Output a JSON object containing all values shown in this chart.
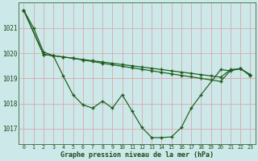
{
  "title": "Graphe pression niveau de la mer (hPa)",
  "background_color": "#cce8e8",
  "grid_color": "#d8a8b0",
  "line_color": "#1a5c1a",
  "xlim_min": -0.5,
  "xlim_max": 23.5,
  "ylim_min": 1016.4,
  "ylim_max": 1022.0,
  "yticks": [
    1017,
    1018,
    1019,
    1020,
    1021
  ],
  "xtick_labels": [
    "0",
    "1",
    "2",
    "3",
    "4",
    "5",
    "6",
    "7",
    "8",
    "9",
    "10",
    "11",
    "12",
    "13",
    "14",
    "15",
    "16",
    "17",
    "18",
    "19",
    "20",
    "21",
    "22",
    "23"
  ],
  "series1_x": [
    0,
    1,
    2,
    3,
    4,
    5,
    6,
    7,
    8,
    9,
    10,
    11,
    12,
    13,
    14,
    15,
    16,
    17,
    18,
    20,
    21,
    22,
    23
  ],
  "series1_y": [
    1021.7,
    1021.0,
    1020.05,
    1019.9,
    1019.1,
    1018.35,
    1017.95,
    1017.82,
    1018.1,
    1017.82,
    1018.35,
    1017.7,
    1017.05,
    1016.65,
    1016.65,
    1016.68,
    1017.05,
    1017.82,
    1018.35,
    1019.35,
    1019.3,
    1019.4,
    1019.1
  ],
  "series2_x": [
    0,
    2,
    3,
    4,
    5,
    6,
    7,
    8,
    9,
    10,
    11,
    12,
    13,
    14,
    15,
    16,
    17,
    18,
    19,
    20,
    21,
    22,
    23
  ],
  "series2_y": [
    1021.7,
    1019.95,
    1019.9,
    1019.85,
    1019.8,
    1019.73,
    1019.67,
    1019.6,
    1019.54,
    1019.48,
    1019.42,
    1019.36,
    1019.3,
    1019.24,
    1019.18,
    1019.12,
    1019.06,
    1019.0,
    1018.94,
    1018.88,
    1019.32,
    1019.38,
    1019.15
  ],
  "series3_x": [
    0,
    2,
    3,
    4,
    5,
    6,
    7,
    8,
    9,
    10,
    11,
    12,
    13,
    14,
    15,
    16,
    17,
    18,
    19,
    20,
    21,
    22,
    23
  ],
  "series3_y": [
    1021.7,
    1019.95,
    1019.9,
    1019.85,
    1019.8,
    1019.75,
    1019.7,
    1019.65,
    1019.6,
    1019.55,
    1019.5,
    1019.45,
    1019.4,
    1019.35,
    1019.3,
    1019.25,
    1019.2,
    1019.15,
    1019.1,
    1019.05,
    1019.35,
    1019.38,
    1019.15
  ]
}
